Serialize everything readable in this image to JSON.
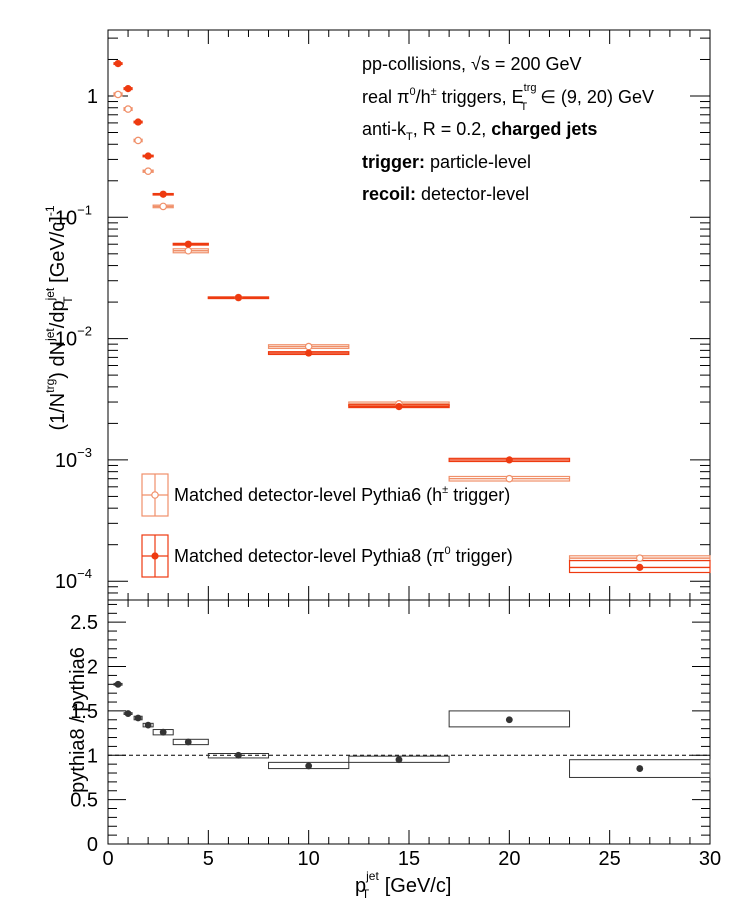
{
  "colors": {
    "pythia6": "#f0906a",
    "pythia8": "#ee3a10",
    "ratio": "#333333",
    "axis": "#000000"
  },
  "annotations": {
    "line1": "pp-collisions, √s = 200 GeV",
    "line2_pre": "real π",
    "line2_sup0": "0",
    "line2_mid": "/h",
    "line2_sup_pm": "±",
    "line2_trig": " triggers, E",
    "line2_sup_trg": "trg",
    "line2_sub_T": "T",
    "line2_post": " ∈ (9, 20) GeV",
    "line3_pre": "anti-k",
    "line3_sub_T": "T",
    "line3_mid": ", R = 0.2, ",
    "line3_bold": "charged jets",
    "line4_bold": "trigger:",
    "line4_rest": " particle-level",
    "line5_bold": "recoil:",
    "line5_rest": " detector-level"
  },
  "chart_data": [
    {
      "type": "scatter",
      "log_y": true,
      "ylabel_parts": {
        "a": "(1/N",
        "sup_trg": "trg",
        "b": ") dN",
        "sup_jet": "jet",
        "c": "/dp",
        "sup_jet2": "jet",
        "sub_T": "T",
        "d": " [GeV/c]",
        "sup_m1": "-1"
      },
      "xlim": [
        0,
        30
      ],
      "ylim": [
        7e-05,
        3.5
      ],
      "yticks": [
        {
          "value": 0.0001,
          "base": "10",
          "exp": "−4"
        },
        {
          "value": 0.001,
          "base": "10",
          "exp": "−3"
        },
        {
          "value": 0.01,
          "base": "10",
          "exp": "−2"
        },
        {
          "value": 0.1,
          "base": "10",
          "exp": "−1"
        },
        {
          "value": 1,
          "base": "1",
          "exp": ""
        }
      ],
      "legend_position": "bottom-left",
      "series": [
        {
          "name_pre": "Matched detector-level Pythia6 (h",
          "name_sup": "±",
          "name_post": " trigger)",
          "marker": "open-circle",
          "points": [
            {
              "x": 0.5,
              "y": 1.03,
              "xlo": 0.3,
              "xhi": 0.7,
              "slo": 1.0,
              "shi": 1.06
            },
            {
              "x": 1.0,
              "y": 0.78,
              "xlo": 0.8,
              "xhi": 1.2,
              "slo": 0.76,
              "shi": 0.8
            },
            {
              "x": 1.5,
              "y": 0.43,
              "xlo": 1.3,
              "xhi": 1.7,
              "slo": 0.42,
              "shi": 0.44
            },
            {
              "x": 2.0,
              "y": 0.24,
              "xlo": 1.75,
              "xhi": 2.25,
              "slo": 0.235,
              "shi": 0.245
            },
            {
              "x": 2.75,
              "y": 0.123,
              "xlo": 2.25,
              "xhi": 3.25,
              "slo": 0.12,
              "shi": 0.126
            },
            {
              "x": 4.0,
              "y": 0.053,
              "xlo": 3.25,
              "xhi": 5.0,
              "slo": 0.051,
              "shi": 0.055
            },
            {
              "x": 6.5,
              "y": 0.0218,
              "xlo": 5.0,
              "xhi": 8.0,
              "slo": 0.0215,
              "shi": 0.0221
            },
            {
              "x": 10.0,
              "y": 0.0086,
              "xlo": 8.0,
              "xhi": 12.0,
              "slo": 0.0083,
              "shi": 0.0089
            },
            {
              "x": 14.5,
              "y": 0.0029,
              "xlo": 12.0,
              "xhi": 17.0,
              "slo": 0.0028,
              "shi": 0.003
            },
            {
              "x": 20.0,
              "y": 0.0007,
              "xlo": 17.0,
              "xhi": 23.0,
              "slo": 0.00067,
              "shi": 0.00073
            },
            {
              "x": 26.5,
              "y": 0.000155,
              "xlo": 23.0,
              "xhi": 30.0,
              "slo": 0.000148,
              "shi": 0.000162
            }
          ]
        },
        {
          "name_pre": "Matched detector-level Pythia8 (π",
          "name_sup": "0",
          "name_post": " trigger)",
          "marker": "filled-circle",
          "points": [
            {
              "x": 0.5,
              "y": 1.85,
              "xlo": 0.3,
              "xhi": 0.7,
              "slo": 1.82,
              "shi": 1.88
            },
            {
              "x": 1.0,
              "y": 1.15,
              "xlo": 0.8,
              "xhi": 1.2,
              "slo": 1.13,
              "shi": 1.17
            },
            {
              "x": 1.5,
              "y": 0.61,
              "xlo": 1.3,
              "xhi": 1.7,
              "slo": 0.6,
              "shi": 0.62
            },
            {
              "x": 2.0,
              "y": 0.32,
              "xlo": 1.75,
              "xhi": 2.25,
              "slo": 0.315,
              "shi": 0.325
            },
            {
              "x": 2.75,
              "y": 0.155,
              "xlo": 2.25,
              "xhi": 3.25,
              "slo": 0.153,
              "shi": 0.157
            },
            {
              "x": 4.0,
              "y": 0.06,
              "xlo": 3.25,
              "xhi": 5.0,
              "slo": 0.059,
              "shi": 0.061
            },
            {
              "x": 6.5,
              "y": 0.0218,
              "xlo": 5.0,
              "xhi": 8.0,
              "slo": 0.0216,
              "shi": 0.022
            },
            {
              "x": 10.0,
              "y": 0.0076,
              "xlo": 8.0,
              "xhi": 12.0,
              "slo": 0.0074,
              "shi": 0.0078
            },
            {
              "x": 14.5,
              "y": 0.00275,
              "xlo": 12.0,
              "xhi": 17.0,
              "slo": 0.0027,
              "shi": 0.00285
            },
            {
              "x": 20.0,
              "y": 0.001,
              "xlo": 17.0,
              "xhi": 23.0,
              "slo": 0.00097,
              "shi": 0.00103
            },
            {
              "x": 26.5,
              "y": 0.00013,
              "xlo": 23.0,
              "xhi": 30.0,
              "slo": 0.000118,
              "shi": 0.000148
            }
          ]
        }
      ]
    },
    {
      "type": "scatter",
      "ylabel": "pythia8 / pythia6",
      "xlabel_pre": "p",
      "xlabel_sup": "jet",
      "xlabel_sub": "T",
      "xlabel_post": " [GeV/c]",
      "xlim": [
        0,
        30
      ],
      "ylim": [
        0,
        2.75
      ],
      "xticks": [
        0,
        5,
        10,
        15,
        20,
        25,
        30
      ],
      "yticks": [
        {
          "value": 0,
          "label": "0"
        },
        {
          "value": 0.5,
          "label": "0.5"
        },
        {
          "value": 1,
          "label": "1"
        },
        {
          "value": 1.5,
          "label": "1.5"
        },
        {
          "value": 2,
          "label": "2"
        },
        {
          "value": 2.5,
          "label": "2.5"
        }
      ],
      "reference_line": 1,
      "points": [
        {
          "x": 0.5,
          "y": 1.8,
          "xlo": 0.3,
          "xhi": 0.7,
          "slo": 1.79,
          "shi": 1.81
        },
        {
          "x": 1.0,
          "y": 1.47,
          "xlo": 0.8,
          "xhi": 1.2,
          "slo": 1.46,
          "shi": 1.48
        },
        {
          "x": 1.5,
          "y": 1.42,
          "xlo": 1.3,
          "xhi": 1.7,
          "slo": 1.4,
          "shi": 1.44
        },
        {
          "x": 2.0,
          "y": 1.34,
          "xlo": 1.75,
          "xhi": 2.25,
          "slo": 1.32,
          "shi": 1.36
        },
        {
          "x": 2.75,
          "y": 1.26,
          "xlo": 2.25,
          "xhi": 3.25,
          "slo": 1.23,
          "shi": 1.29
        },
        {
          "x": 4.0,
          "y": 1.15,
          "xlo": 3.25,
          "xhi": 5.0,
          "slo": 1.12,
          "shi": 1.18
        },
        {
          "x": 6.5,
          "y": 1.0,
          "xlo": 5.0,
          "xhi": 8.0,
          "slo": 0.97,
          "shi": 1.02
        },
        {
          "x": 10.0,
          "y": 0.88,
          "xlo": 8.0,
          "xhi": 12.0,
          "slo": 0.85,
          "shi": 0.92
        },
        {
          "x": 14.5,
          "y": 0.95,
          "xlo": 12.0,
          "xhi": 17.0,
          "slo": 0.92,
          "shi": 0.99
        },
        {
          "x": 20.0,
          "y": 1.4,
          "xlo": 17.0,
          "xhi": 23.0,
          "slo": 1.32,
          "shi": 1.5
        },
        {
          "x": 26.5,
          "y": 0.85,
          "xlo": 23.0,
          "xhi": 30.0,
          "slo": 0.75,
          "shi": 0.95
        }
      ]
    }
  ]
}
